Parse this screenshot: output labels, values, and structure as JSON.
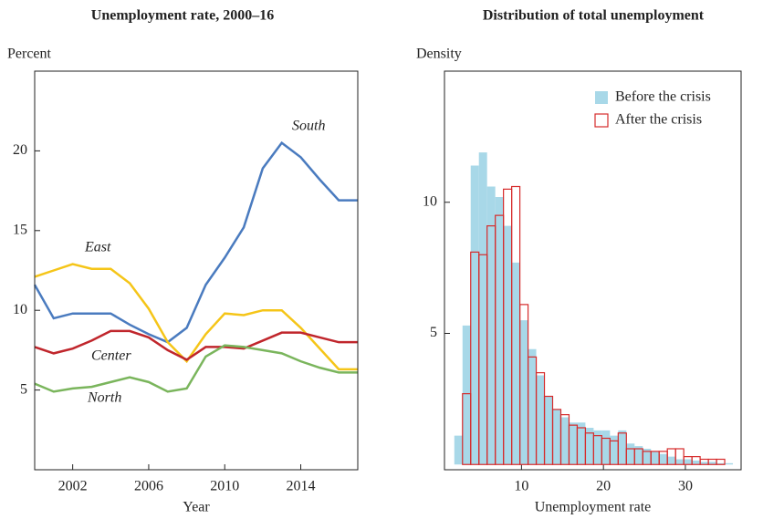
{
  "chart_data": [
    {
      "type": "line",
      "title": "Unemployment rate, 2000–16",
      "y_label": "Percent",
      "x_label": "Year",
      "x": [
        2000,
        2001,
        2002,
        2003,
        2004,
        2005,
        2006,
        2007,
        2008,
        2009,
        2010,
        2011,
        2012,
        2013,
        2014,
        2015,
        2016,
        2017
      ],
      "series": [
        {
          "name": "South",
          "color": "#4a7bbf",
          "values": [
            11.6,
            9.5,
            9.8,
            9.8,
            9.8,
            9.1,
            8.5,
            8.0,
            8.9,
            11.6,
            13.3,
            15.2,
            18.9,
            20.5,
            19.6,
            18.2,
            16.9,
            16.9
          ]
        },
        {
          "name": "East",
          "color": "#f5c518",
          "values": [
            12.1,
            12.5,
            12.9,
            12.6,
            12.6,
            11.7,
            10.1,
            8.0,
            6.8,
            8.5,
            9.8,
            9.7,
            10.0,
            10.0,
            8.9,
            7.6,
            6.3,
            6.3
          ]
        },
        {
          "name": "Center",
          "color": "#c0262c",
          "values": [
            7.7,
            7.3,
            7.6,
            8.1,
            8.7,
            8.7,
            8.3,
            7.5,
            6.9,
            7.7,
            7.7,
            7.6,
            8.1,
            8.6,
            8.6,
            8.3,
            8.0,
            8.0
          ]
        },
        {
          "name": "North",
          "color": "#7ab55c",
          "values": [
            5.4,
            4.9,
            5.1,
            5.2,
            5.5,
            5.8,
            5.5,
            4.9,
            5.1,
            7.1,
            7.8,
            7.7,
            7.5,
            7.3,
            6.8,
            6.4,
            6.1,
            6.1
          ]
        }
      ],
      "xlim": [
        2000,
        2017
      ],
      "ylim": [
        0,
        25
      ],
      "xticks": [
        2002,
        2006,
        2010,
        2014
      ],
      "yticks": [
        5,
        10,
        15,
        20
      ]
    },
    {
      "type": "histogram",
      "title": "Distribution of total unemployment",
      "y_label": "Density",
      "x_label": "Unemployment rate",
      "bins": [
        1.8,
        2.8,
        3.8,
        4.8,
        5.8,
        6.8,
        7.8,
        8.8,
        9.8,
        10.8,
        11.8,
        12.8,
        13.8,
        14.8,
        15.8,
        16.8,
        17.8,
        18.8,
        19.8,
        20.8,
        21.8,
        22.8,
        23.8,
        24.8,
        25.8,
        26.8,
        27.8,
        28.8,
        29.8,
        30.8,
        31.8,
        32.8,
        33.8,
        34.8,
        35.8
      ],
      "series": [
        {
          "name": "Before the crisis",
          "color": "#a8d8e8",
          "filled": true,
          "values": [
            1.1,
            5.3,
            11.4,
            11.9,
            10.6,
            10.2,
            9.1,
            7.7,
            5.5,
            4.4,
            3.4,
            2.6,
            2.1,
            1.8,
            1.6,
            1.6,
            1.4,
            1.3,
            1.3,
            1.1,
            1.3,
            0.8,
            0.7,
            0.6,
            0.5,
            0.4,
            0.3,
            0.2,
            0.2,
            0.15,
            0.1,
            0.1,
            0.05,
            0.05
          ]
        },
        {
          "name": "After the crisis",
          "color": "#d62b2b",
          "filled": false,
          "values": [
            0,
            2.7,
            8.1,
            8.0,
            9.1,
            9.5,
            10.5,
            10.6,
            6.1,
            4.1,
            3.5,
            2.6,
            2.1,
            1.9,
            1.5,
            1.4,
            1.2,
            1.1,
            1.0,
            0.9,
            1.2,
            0.6,
            0.6,
            0.5,
            0.5,
            0.5,
            0.6,
            0.6,
            0.3,
            0.3,
            0.2,
            0.2,
            0.2,
            0
          ]
        }
      ],
      "legend": "upper right",
      "xlim": [
        0.6,
        36.8
      ],
      "ylim": [
        -0.2,
        15
      ],
      "xticks": [
        10,
        20,
        30
      ],
      "yticks": [
        5,
        10
      ]
    }
  ]
}
